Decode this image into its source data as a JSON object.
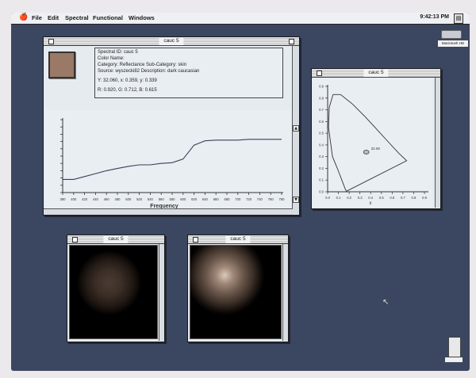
{
  "menubar": {
    "apple_glyph": "🍎",
    "items": [
      "File",
      "Edit",
      "Spectral",
      "Functional",
      "Windows"
    ],
    "clock": "9:42:13 PM",
    "disk_label": "Macintosh HD"
  },
  "spectral_window": {
    "title": "cauc 5",
    "swatch_color": "#9a7a66",
    "info_lines": [
      "Spectral ID: cauc 5",
      "Color Name:",
      "Category: Reflectance    Sub-Category: skin",
      "Source:  wyszecki82    Description:  dark caucasian",
      "Y: 32.060,  x: 0.359,  y: 0.339",
      "R: 0.920,  G: 0.712,  B: 0.615"
    ]
  },
  "chromaticity_window": {
    "title": "cauc 5",
    "point_label": "32.06"
  },
  "render_windows": [
    {
      "title": "cauc 5"
    },
    {
      "title": "cauc 5"
    }
  ],
  "chart_data": [
    {
      "type": "line",
      "xlabel": "Frequency",
      "x_ticks": [
        380,
        400,
        420,
        440,
        460,
        480,
        500,
        520,
        540,
        560,
        580,
        600,
        620,
        640,
        660,
        680,
        700,
        720,
        740,
        760,
        780
      ],
      "y_ticks_count": 10,
      "x": [
        380,
        400,
        420,
        440,
        460,
        480,
        500,
        520,
        540,
        560,
        580,
        600,
        620,
        640,
        660,
        680,
        700,
        720,
        740,
        760,
        780
      ],
      "series": [
        {
          "values": [
            0.18,
            0.18,
            0.22,
            0.26,
            0.3,
            0.33,
            0.36,
            0.38,
            0.38,
            0.4,
            0.41,
            0.46,
            0.65,
            0.71,
            0.72,
            0.72,
            0.72,
            0.73,
            0.73,
            0.73,
            0.73
          ]
        }
      ],
      "xlim": [
        380,
        780
      ],
      "ylim": [
        0,
        1
      ]
    },
    {
      "type": "scatter",
      "xlabel": "x",
      "x_ticks": [
        "0.0",
        "0.1",
        "0.2",
        "0.3",
        "0.4",
        "0.5",
        "0.6",
        "0.7",
        "0.8",
        "0.9"
      ],
      "y_ticks": [
        "0.0",
        "0.1",
        "0.2",
        "0.3",
        "0.4",
        "0.5",
        "0.6",
        "0.7",
        "0.8",
        "0.9"
      ],
      "locus": [
        [
          0.175,
          0.005
        ],
        [
          0.165,
          0.02
        ],
        [
          0.14,
          0.08
        ],
        [
          0.09,
          0.2
        ],
        [
          0.045,
          0.3
        ],
        [
          0.008,
          0.55
        ],
        [
          0.015,
          0.72
        ],
        [
          0.05,
          0.83
        ],
        [
          0.12,
          0.83
        ],
        [
          0.23,
          0.75
        ],
        [
          0.35,
          0.64
        ],
        [
          0.45,
          0.54
        ],
        [
          0.56,
          0.43
        ],
        [
          0.66,
          0.33
        ],
        [
          0.735,
          0.265
        ],
        [
          0.175,
          0.005
        ]
      ],
      "points": [
        {
          "x": 0.359,
          "y": 0.339,
          "label": "32.06"
        }
      ],
      "xlim": [
        0,
        0.9
      ],
      "ylim": [
        0,
        0.9
      ]
    }
  ]
}
